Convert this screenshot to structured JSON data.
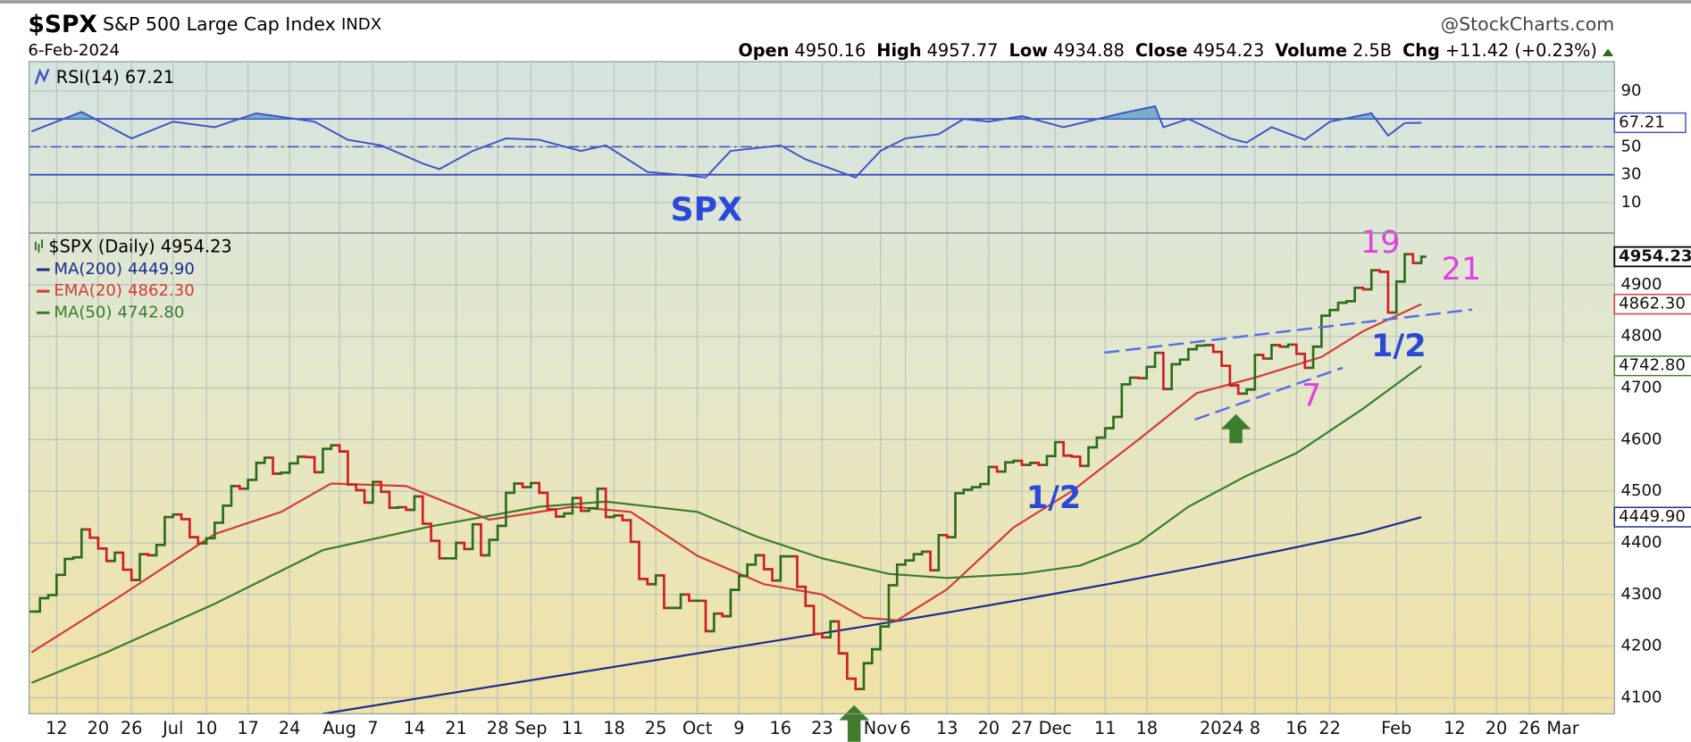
{
  "header": {
    "symbol": "$SPX",
    "name": "S&P 500 Large Cap Index",
    "exchange": "INDX",
    "source": "@StockCharts.com",
    "date": "6-Feb-2024",
    "quote": [
      {
        "label": "Open",
        "value": 4950.16
      },
      {
        "label": "High",
        "value": 4957.77
      },
      {
        "label": "Low",
        "value": 4934.88
      },
      {
        "label": "Close",
        "value": 4954.23
      },
      {
        "label": "Volume",
        "value": "2.5B"
      },
      {
        "label": "Chg",
        "value": "+11.42 (+0.23%)"
      }
    ]
  },
  "chart_data": [
    {
      "type": "line",
      "title": "RSI(14)",
      "annotation": "SPX",
      "color": "#3f52c4",
      "fill_color": "#5b9cc4",
      "x": [
        0,
        6,
        12,
        17,
        22,
        27,
        34,
        38,
        42,
        47,
        49,
        53,
        57,
        61,
        66,
        69,
        74,
        78,
        81,
        84,
        90,
        93,
        99,
        102,
        105,
        109,
        112,
        115,
        119,
        124,
        131,
        135,
        136,
        139,
        144,
        146,
        149,
        153,
        156,
        161,
        163,
        165,
        167
      ],
      "values": [
        61,
        75,
        56,
        68,
        64,
        74,
        68,
        55,
        51,
        38,
        34,
        47,
        56,
        55,
        47,
        51,
        32,
        30,
        28,
        47,
        51,
        41,
        28,
        47,
        56,
        59,
        70,
        68,
        72,
        64,
        74,
        79,
        64,
        70,
        56,
        53,
        64,
        55,
        68,
        74,
        58,
        67,
        67.21
      ],
      "xlim": [
        -0.3,
        190.2
      ],
      "ylim": [
        -11,
        111
      ],
      "yticks": [
        10,
        30,
        50,
        90
      ],
      "bands": [
        30,
        70
      ],
      "midline": 50,
      "grid": true
    },
    {
      "type": "stock",
      "title": "$SPX (Daily)",
      "up_color": "#2d6b1c",
      "down_color": "#cc2020",
      "values": [
        4267,
        4293,
        4299,
        4338,
        4369,
        4372,
        4426,
        4410,
        4389,
        4365,
        4381,
        4348,
        4328,
        4378,
        4376,
        4396,
        4450,
        4455,
        4446,
        4411,
        4399,
        4409,
        4439,
        4472,
        4510,
        4505,
        4522,
        4555,
        4565,
        4534,
        4536,
        4554,
        4567,
        4566,
        4537,
        4582,
        4589,
        4577,
        4513,
        4502,
        4478,
        4518,
        4499,
        4468,
        4469,
        4464,
        4490,
        4437,
        4404,
        4370,
        4370,
        4400,
        4388,
        4436,
        4376,
        4406,
        4433,
        4497,
        4515,
        4508,
        4516,
        4497,
        4465,
        4451,
        4457,
        4487,
        4462,
        4467,
        4505,
        4450,
        4453,
        4444,
        4402,
        4330,
        4320,
        4337,
        4274,
        4274,
        4300,
        4288,
        4288,
        4229,
        4263,
        4258,
        4309,
        4336,
        4358,
        4376,
        4349,
        4327,
        4374,
        4374,
        4315,
        4278,
        4224,
        4217,
        4248,
        4186,
        4137,
        4117,
        4167,
        4194,
        4238,
        4318,
        4358,
        4366,
        4378,
        4383,
        4347,
        4415,
        4411,
        4496,
        4503,
        4508,
        4514,
        4547,
        4538,
        4556,
        4559,
        4551,
        4555,
        4551,
        4568,
        4595,
        4569,
        4567,
        4549,
        4585,
        4604,
        4622,
        4644,
        4707,
        4720,
        4719,
        4741,
        4768,
        4698,
        4746,
        4755,
        4775,
        4782,
        4783,
        4770,
        4743,
        4705,
        4689,
        4697,
        4764,
        4757,
        4783,
        4780,
        4784,
        4766,
        4739,
        4780,
        4840,
        4851,
        4865,
        4868,
        4894,
        4891,
        4928,
        4925,
        4846,
        4906,
        4959,
        4942,
        4954.23
      ],
      "series": [
        {
          "name": "MA(200)",
          "color": "#1e2b8e",
          "last_label": "4449.90",
          "x": [
            35,
            50,
            70,
            90,
            100,
            110,
            120,
            130,
            140,
            150,
            160,
            167
          ],
          "values": [
            4069,
            4108,
            4160,
            4212,
            4238,
            4265,
            4293,
            4322,
            4353,
            4385,
            4419,
            4449.9
          ]
        },
        {
          "name": "EMA(20)",
          "color": "#d23a3a",
          "last_label": "4862.30",
          "x": [
            0,
            10,
            22,
            30,
            36,
            45,
            55,
            65,
            72,
            80,
            88,
            95,
            100,
            104,
            110,
            118,
            125,
            133,
            140,
            147,
            155,
            160,
            167
          ],
          "values": [
            4188,
            4290,
            4417,
            4460,
            4515,
            4510,
            4445,
            4470,
            4460,
            4375,
            4320,
            4300,
            4255,
            4250,
            4310,
            4430,
            4500,
            4600,
            4690,
            4720,
            4760,
            4810,
            4862.3
          ]
        },
        {
          "name": "MA(50)",
          "color": "#3c7a2c",
          "last_label": "4742.80",
          "x": [
            0,
            9,
            22,
            35,
            48,
            61,
            69,
            80,
            87,
            95,
            103,
            110,
            119,
            126,
            133,
            139,
            146,
            152,
            160,
            167
          ],
          "values": [
            4129,
            4188,
            4282,
            4386,
            4432,
            4470,
            4480,
            4460,
            4413,
            4370,
            4340,
            4332,
            4340,
            4356,
            4400,
            4470,
            4530,
            4574,
            4660,
            4742.8
          ]
        }
      ],
      "annotations": [
        "19",
        "21",
        "1/2",
        "1/2",
        "7"
      ],
      "xlim": [
        -0.3,
        190.2
      ],
      "ylim": [
        4069,
        4998
      ],
      "yticks": [
        4100,
        4200,
        4300,
        4400,
        4500,
        4600,
        4700,
        4800,
        4900
      ],
      "xticks": [
        {
          "value": 3,
          "label": "12"
        },
        {
          "value": 8,
          "label": "20"
        },
        {
          "value": 12,
          "label": "26"
        },
        {
          "value": 17,
          "label": "Jul"
        },
        {
          "value": 21,
          "label": "10"
        },
        {
          "value": 26,
          "label": "17"
        },
        {
          "value": 31,
          "label": "24"
        },
        {
          "value": 37,
          "label": "Aug"
        },
        {
          "value": 41,
          "label": "7"
        },
        {
          "value": 46,
          "label": "14"
        },
        {
          "value": 51,
          "label": "21"
        },
        {
          "value": 56,
          "label": "28"
        },
        {
          "value": 60,
          "label": "Sep"
        },
        {
          "value": 65,
          "label": "11"
        },
        {
          "value": 70,
          "label": "18"
        },
        {
          "value": 75,
          "label": "25"
        },
        {
          "value": 80,
          "label": "Oct"
        },
        {
          "value": 85,
          "label": "9"
        },
        {
          "value": 90,
          "label": "16"
        },
        {
          "value": 95,
          "label": "23"
        },
        {
          "value": 102,
          "label": "Nov"
        },
        {
          "value": 105,
          "label": "6"
        },
        {
          "value": 110,
          "label": "13"
        },
        {
          "value": 115,
          "label": "20"
        },
        {
          "value": 119,
          "label": "27"
        },
        {
          "value": 123,
          "label": "Dec"
        },
        {
          "value": 129,
          "label": "11"
        },
        {
          "value": 134,
          "label": "18"
        },
        {
          "value": 143,
          "label": "2024"
        },
        {
          "value": 147,
          "label": "8"
        },
        {
          "value": 152,
          "label": "16"
        },
        {
          "value": 156,
          "label": "22"
        },
        {
          "value": 164,
          "label": "Feb"
        },
        {
          "value": 171,
          "label": "12"
        },
        {
          "value": 176,
          "label": "20"
        },
        {
          "value": 180,
          "label": "26"
        },
        {
          "value": 184,
          "label": "Mar"
        }
      ],
      "grid": true
    }
  ]
}
